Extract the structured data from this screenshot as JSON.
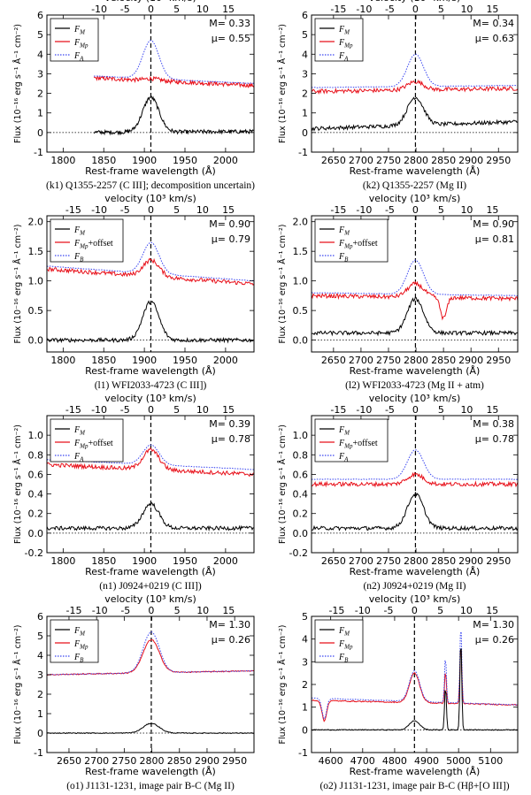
{
  "figure": {
    "top_axis_label": "velocity (10³ km/s)",
    "y_label": "Flux (10⁻¹⁶ erg s⁻¹ Å⁻¹ cm⁻²)",
    "x_label": "Rest-frame wavelength (Å)"
  },
  "chart_data": [
    {
      "type": "line",
      "caption": "(k1) Q1355-2257 (C III]; decomposition uncertain)",
      "xlim": [
        1780,
        2035
      ],
      "ylim": [
        -1,
        6
      ],
      "xticks": [
        1800,
        1850,
        1900,
        1950,
        2000
      ],
      "yticks": [
        -1,
        0,
        1,
        2,
        3,
        4,
        5,
        6
      ],
      "vticks": [
        -10,
        -5,
        0,
        5,
        10,
        15
      ],
      "line_center": 1908,
      "M": "M= 0.33",
      "mu": "μ= 0.55",
      "data_start": 1838,
      "legend": [
        "F_M",
        "F_Mp",
        "F_A"
      ],
      "profile": {
        "F_M": [
          0,
          0.05,
          1.8,
          0.2
        ],
        "red": [
          2.9,
          2.4,
          2.75,
          3.1
        ],
        "blue": [
          3.0,
          2.5,
          4.7,
          3.4
        ]
      }
    },
    {
      "type": "line",
      "caption": "(k2) Q1355-2257 (Mg II)",
      "xlim": [
        2610,
        2985
      ],
      "ylim": [
        -1,
        6
      ],
      "xticks": [
        2650,
        2700,
        2750,
        2800,
        2850,
        2900,
        2950
      ],
      "yticks": [
        -1,
        0,
        1,
        2,
        3,
        4,
        5,
        6
      ],
      "vticks": [
        -15,
        -10,
        -5,
        0,
        5,
        10,
        15
      ],
      "line_center": 2799,
      "M": "M= 0.34",
      "mu": "μ= 0.63",
      "data_start": 2610,
      "legend": [
        "F_M",
        "F_Mp",
        "F_A"
      ],
      "profile": {
        "F_M": [
          0.2,
          0.55,
          1.8,
          0.2
        ],
        "red": [
          2.1,
          2.25,
          2.6,
          2.2
        ],
        "blue": [
          2.3,
          2.4,
          4.0,
          2.6
        ]
      }
    },
    {
      "type": "line",
      "caption": "(l1) WFI2033-4723 (C III])",
      "xlim": [
        1780,
        2035
      ],
      "ylim": [
        -0.2,
        2.1
      ],
      "xticks": [
        1800,
        1850,
        1900,
        1950,
        2000
      ],
      "yticks": [
        0.0,
        0.5,
        1.0,
        1.5,
        2.0
      ],
      "vticks": [
        -15,
        -10,
        -5,
        0,
        5,
        10,
        15
      ],
      "line_center": 1908,
      "M": "M= 0.90",
      "mu": "μ= 0.79",
      "data_start": 1780,
      "legend": [
        "F_M",
        "F_Mp+offset",
        "F_B"
      ],
      "profile": {
        "F_M": [
          0.0,
          0.0,
          0.65,
          0.0
        ],
        "red": [
          1.2,
          0.95,
          1.35,
          1.0
        ],
        "blue": [
          1.25,
          1.0,
          1.65,
          1.05
        ]
      }
    },
    {
      "type": "line",
      "caption": "(l2) WFI2033-4723 (Mg II + atm)",
      "xlim": [
        2610,
        2985
      ],
      "ylim": [
        -0.2,
        2.1
      ],
      "xticks": [
        2650,
        2700,
        2750,
        2800,
        2850,
        2900,
        2950
      ],
      "yticks": [
        0.0,
        0.5,
        1.0,
        1.5,
        2.0
      ],
      "vticks": [
        -15,
        -10,
        -5,
        0,
        5,
        10,
        15
      ],
      "line_center": 2799,
      "M": "M= 0.90",
      "mu": "μ= 0.81",
      "data_start": 2610,
      "legend": [
        "F_M",
        "F_Mp+offset",
        "F_B"
      ],
      "profile": {
        "F_M": [
          0.12,
          0.12,
          0.7,
          0.2
        ],
        "red": [
          0.75,
          0.7,
          0.95,
          0.7
        ],
        "blue": [
          0.8,
          0.75,
          1.35,
          0.75
        ]
      }
    },
    {
      "type": "line",
      "caption": "(n1) J0924+0219 (C III])",
      "xlim": [
        1780,
        2035
      ],
      "ylim": [
        -0.2,
        1.2
      ],
      "xticks": [
        1800,
        1850,
        1900,
        1950,
        2000
      ],
      "yticks": [
        -0.2,
        0.0,
        0.2,
        0.4,
        0.6,
        0.8,
        1.0
      ],
      "vticks": [
        -15,
        -10,
        -5,
        0,
        5,
        10,
        15
      ],
      "line_center": 1908,
      "M": "M= 0.39",
      "mu": "μ= 0.78",
      "data_start": 1780,
      "legend": [
        "F_M",
        "F_Mp+offset",
        "F_A"
      ],
      "profile": {
        "F_M": [
          0.05,
          0.05,
          0.3,
          0.0
        ],
        "red": [
          0.7,
          0.6,
          0.85,
          0.6
        ],
        "blue": [
          0.75,
          0.65,
          0.9,
          0.65
        ]
      }
    },
    {
      "type": "line",
      "caption": "(n2) J0924+0219 (Mg II)",
      "xlim": [
        2610,
        2985
      ],
      "ylim": [
        -0.2,
        1.2
      ],
      "xticks": [
        2650,
        2700,
        2750,
        2800,
        2850,
        2900,
        2950
      ],
      "yticks": [
        -0.2,
        0.0,
        0.2,
        0.4,
        0.6,
        0.8,
        1.0
      ],
      "vticks": [
        -15,
        -10,
        -5,
        0,
        5,
        10,
        15
      ],
      "line_center": 2799,
      "M": "M= 0.38",
      "mu": "μ= 0.78",
      "data_start": 2610,
      "legend": [
        "F_M",
        "F_Mp+offset",
        "F_A"
      ],
      "profile": {
        "F_M": [
          0.05,
          0.05,
          0.4,
          0.05
        ],
        "red": [
          0.5,
          0.5,
          0.6,
          0.5
        ],
        "blue": [
          0.55,
          0.55,
          0.85,
          0.55
        ]
      }
    },
    {
      "type": "line",
      "caption": "(o1) J1131-1231, image pair B-C (Mg II)",
      "xlim": [
        2610,
        2985
      ],
      "ylim": [
        -1,
        6
      ],
      "xticks": [
        2650,
        2700,
        2750,
        2800,
        2850,
        2900,
        2950
      ],
      "yticks": [
        -1,
        0,
        1,
        2,
        3,
        4,
        5,
        6
      ],
      "vticks": [
        -15,
        -10,
        -5,
        0,
        5,
        10,
        15
      ],
      "line_center": 2799,
      "M": "M= 1.30",
      "mu": "μ= 0.26",
      "data_start": 2610,
      "legend": [
        "F_M",
        "F_Mp",
        "F_B"
      ],
      "profile": {
        "F_M": [
          0.0,
          0.0,
          0.5,
          0.0
        ],
        "red": [
          3.0,
          3.2,
          4.8,
          2.6
        ],
        "blue": [
          3.0,
          3.2,
          5.2,
          2.6
        ]
      }
    },
    {
      "type": "line",
      "caption": "(o2) J1131-1231, image pair B-C (Hβ+[O III])",
      "xlim": [
        4540,
        5185
      ],
      "ylim": [
        -1,
        5
      ],
      "xticks": [
        4600,
        4700,
        4800,
        4900,
        5000,
        5100
      ],
      "yticks": [
        -1,
        0,
        1,
        2,
        3,
        4,
        5
      ],
      "vticks": [
        -15,
        -10,
        -5,
        0,
        5,
        10,
        15
      ],
      "line_center": 4862,
      "M": "M= 1.30",
      "mu": "μ= 0.26",
      "data_start": 4540,
      "legend": [
        "F_M",
        "F_Mp",
        "F_B"
      ],
      "profile": {
        "F_M": [
          0.0,
          0.0,
          0.4,
          0.0
        ],
        "red": [
          1.3,
          1.1,
          2.5,
          0.6
        ],
        "blue": [
          1.4,
          1.1,
          2.6,
          0.6
        ]
      }
    }
  ],
  "colors": {
    "black": "#000000",
    "red": "#e8101a",
    "blue": "#3a46f0"
  }
}
